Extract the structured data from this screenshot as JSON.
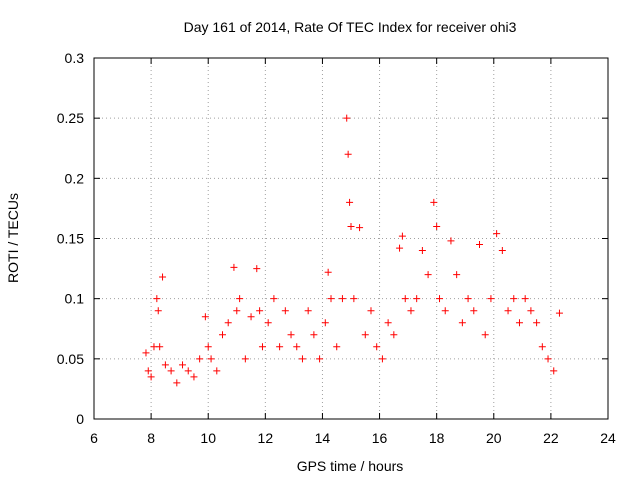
{
  "chart_data": {
    "type": "scatter",
    "title": "Day 161 of 2014, Rate Of TEC Index for receiver ohi3",
    "xlabel": "GPS time / hours",
    "ylabel": "ROTI / TECUs",
    "xlim": [
      6,
      24
    ],
    "ylim": [
      0,
      0.3
    ],
    "x_ticks": [
      6,
      8,
      10,
      12,
      14,
      16,
      18,
      20,
      22,
      24
    ],
    "x_tick_labels": [
      "6",
      "8",
      "10",
      "12",
      "14",
      "16",
      "18",
      "20",
      "22",
      "24"
    ],
    "y_ticks": [
      0,
      0.05,
      0.1,
      0.15,
      0.2,
      0.25,
      0.3
    ],
    "y_tick_labels": [
      "0",
      "0.05",
      "0.1",
      "0.15",
      "0.2",
      "0.25",
      "0.3"
    ],
    "grid": true,
    "marker": "+",
    "marker_color": "#ff0000",
    "series": [
      {
        "name": "ROTI",
        "x": [
          7.82,
          7.9,
          8.0,
          8.1,
          8.2,
          8.25,
          8.3,
          8.4,
          8.5,
          8.7,
          8.9,
          9.1,
          9.3,
          9.5,
          9.7,
          9.9,
          10.0,
          10.1,
          10.3,
          10.5,
          10.7,
          10.9,
          11.0,
          11.1,
          11.3,
          11.5,
          11.7,
          11.8,
          11.9,
          12.1,
          12.3,
          12.5,
          12.7,
          12.9,
          13.1,
          13.3,
          13.5,
          13.7,
          13.9,
          14.1,
          14.2,
          14.3,
          14.5,
          14.7,
          14.85,
          14.9,
          14.95,
          15.0,
          15.1,
          15.3,
          15.5,
          15.7,
          15.9,
          16.1,
          16.3,
          16.5,
          16.7,
          16.8,
          16.9,
          17.1,
          17.3,
          17.5,
          17.7,
          17.9,
          18.0,
          18.1,
          18.3,
          18.5,
          18.7,
          18.9,
          19.1,
          19.3,
          19.5,
          19.7,
          19.9,
          20.1,
          20.3,
          20.5,
          20.7,
          20.9,
          21.1,
          21.3,
          21.5,
          21.7,
          21.9,
          22.1,
          22.3
        ],
        "y": [
          0.055,
          0.04,
          0.035,
          0.06,
          0.1,
          0.09,
          0.06,
          0.118,
          0.045,
          0.04,
          0.03,
          0.045,
          0.04,
          0.035,
          0.05,
          0.085,
          0.06,
          0.05,
          0.04,
          0.07,
          0.08,
          0.126,
          0.09,
          0.1,
          0.05,
          0.085,
          0.125,
          0.09,
          0.06,
          0.08,
          0.1,
          0.06,
          0.09,
          0.07,
          0.06,
          0.05,
          0.09,
          0.07,
          0.05,
          0.08,
          0.122,
          0.1,
          0.06,
          0.1,
          0.25,
          0.22,
          0.18,
          0.16,
          0.1,
          0.159,
          0.07,
          0.09,
          0.06,
          0.05,
          0.08,
          0.07,
          0.142,
          0.152,
          0.1,
          0.09,
          0.1,
          0.14,
          0.12,
          0.18,
          0.16,
          0.1,
          0.09,
          0.148,
          0.12,
          0.08,
          0.1,
          0.09,
          0.145,
          0.07,
          0.1,
          0.154,
          0.14,
          0.09,
          0.1,
          0.08,
          0.1,
          0.09,
          0.08,
          0.06,
          0.05,
          0.04,
          0.088
        ]
      }
    ]
  }
}
